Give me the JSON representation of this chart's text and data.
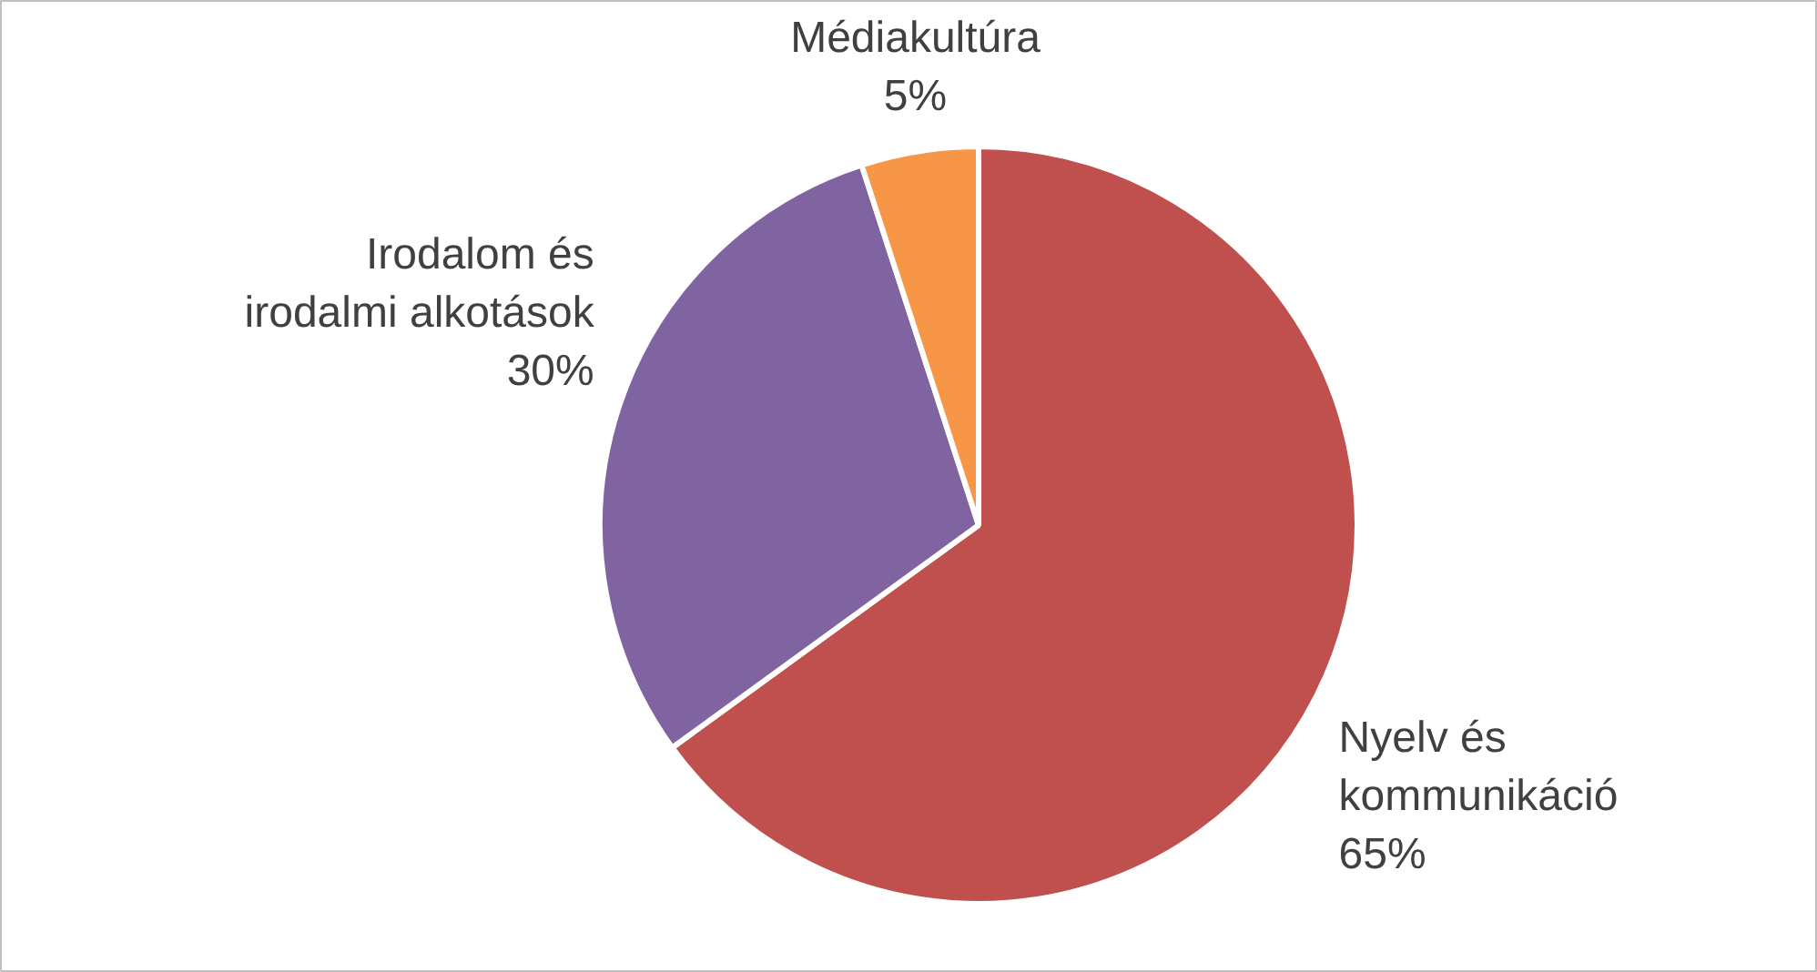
{
  "chart_data": {
    "type": "pie",
    "categories": [
      "Nyelv és kommunikáció",
      "Irodalom és irodalmi alkotások",
      "Médiakultúra"
    ],
    "values": [
      65,
      30,
      5
    ],
    "colors": [
      "#c0504d",
      "#8064a2",
      "#f79646"
    ],
    "value_labels": [
      "65%",
      "30%",
      "5%"
    ]
  }
}
